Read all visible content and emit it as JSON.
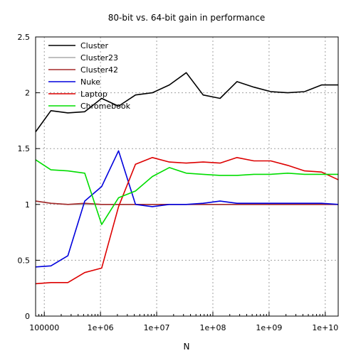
{
  "chart_data": {
    "type": "line",
    "title": "80-bit vs. 64-bit gain in performance",
    "xlabel": "N",
    "ylabel": "",
    "x_scale": "log",
    "xlim": [
      70000,
      17000000000
    ],
    "ylim": [
      0,
      2.5
    ],
    "grid": true,
    "legend_position": "top-left",
    "x_ticks": [
      {
        "value": 100000,
        "label": "100000"
      },
      {
        "value": 1000000,
        "label": "1e+06"
      },
      {
        "value": 10000000,
        "label": "1e+07"
      },
      {
        "value": 100000000,
        "label": "1e+08"
      },
      {
        "value": 1000000000,
        "label": "1e+09"
      },
      {
        "value": 10000000000,
        "label": "1e+10"
      }
    ],
    "y_ticks": [
      {
        "value": 0,
        "label": "0"
      },
      {
        "value": 0.5,
        "label": "0.5"
      },
      {
        "value": 1,
        "label": "1"
      },
      {
        "value": 1.5,
        "label": "1.5"
      },
      {
        "value": 2,
        "label": "2"
      },
      {
        "value": 2.5,
        "label": "2.5"
      }
    ],
    "series": [
      {
        "name": "Cluster",
        "color": "#000000",
        "x": [
          70000,
          131072,
          262144,
          524288,
          1048576,
          2097152,
          4194304,
          8388608,
          16777216,
          33554432,
          67108864,
          134217728,
          268435456,
          536870912,
          1073741824,
          2147483648,
          4294967296,
          8589934592,
          17179869184
        ],
        "y": [
          1.65,
          1.84,
          1.82,
          1.83,
          1.95,
          1.88,
          1.98,
          2.0,
          2.07,
          2.18,
          1.98,
          1.95,
          2.1,
          2.05,
          2.01,
          2.0,
          2.01,
          2.07,
          2.07
        ]
      },
      {
        "name": "Cluster23",
        "color": "#aaaaaa",
        "x": [
          70000,
          131072,
          262144,
          524288,
          1048576,
          2097152,
          4194304,
          8388608,
          16777216,
          33554432,
          67108864,
          134217728,
          268435456,
          536870912,
          1073741824,
          2147483648,
          4294967296,
          8589934592,
          17179869184
        ],
        "y": [
          1.03,
          1.01,
          1.0,
          1.0,
          1.0,
          1.0,
          1.0,
          1.0,
          1.0,
          1.0,
          1.0,
          1.0,
          1.0,
          1.0,
          1.0,
          1.0,
          1.0,
          1.0,
          1.0
        ]
      },
      {
        "name": "Cluster42",
        "color": "#a52a2a",
        "x": [
          70000,
          131072,
          262144,
          524288,
          1048576,
          2097152,
          4194304,
          8388608,
          16777216,
          33554432,
          67108864,
          134217728,
          268435456,
          536870912,
          1073741824,
          2147483648,
          4294967296,
          8589934592,
          17179869184
        ],
        "y": [
          1.03,
          1.01,
          1.0,
          1.01,
          1.0,
          1.0,
          1.0,
          1.0,
          1.0,
          1.0,
          1.0,
          1.0,
          1.0,
          1.0,
          1.0,
          1.0,
          1.0,
          1.0,
          1.0
        ]
      },
      {
        "name": "Nuke",
        "color": "#0000dd",
        "x": [
          70000,
          131072,
          262144,
          524288,
          1048576,
          2097152,
          4194304,
          8388608,
          16777216,
          33554432,
          67108864,
          134217728,
          268435456,
          536870912,
          1073741824,
          2147483648,
          4294967296,
          8589934592,
          17179869184
        ],
        "y": [
          0.44,
          0.45,
          0.54,
          1.03,
          1.16,
          1.48,
          1.0,
          0.98,
          1.0,
          1.0,
          1.01,
          1.03,
          1.01,
          1.01,
          1.01,
          1.01,
          1.01,
          1.01,
          1.0
        ]
      },
      {
        "name": "Laptop",
        "color": "#dd0000",
        "x": [
          70000,
          131072,
          262144,
          524288,
          1048576,
          2097152,
          4194304,
          8388608,
          16777216,
          33554432,
          67108864,
          134217728,
          268435456,
          536870912,
          1073741824,
          2147483648,
          4294967296,
          8589934592,
          17179869184
        ],
        "y": [
          0.29,
          0.3,
          0.3,
          0.39,
          0.43,
          0.98,
          1.36,
          1.42,
          1.38,
          1.37,
          1.38,
          1.37,
          1.42,
          1.39,
          1.39,
          1.35,
          1.3,
          1.29,
          1.22
        ]
      },
      {
        "name": "Chromebook",
        "color": "#00dd00",
        "x": [
          70000,
          131072,
          262144,
          524288,
          1048576,
          2097152,
          4194304,
          8388608,
          16777216,
          33554432,
          67108864,
          134217728,
          268435456,
          536870912,
          1073741824,
          2147483648,
          4294967296,
          8589934592,
          17179869184
        ],
        "y": [
          1.4,
          1.31,
          1.3,
          1.28,
          0.82,
          1.06,
          1.12,
          1.25,
          1.33,
          1.28,
          1.27,
          1.26,
          1.26,
          1.27,
          1.27,
          1.28,
          1.27,
          1.27,
          1.27
        ]
      }
    ]
  }
}
